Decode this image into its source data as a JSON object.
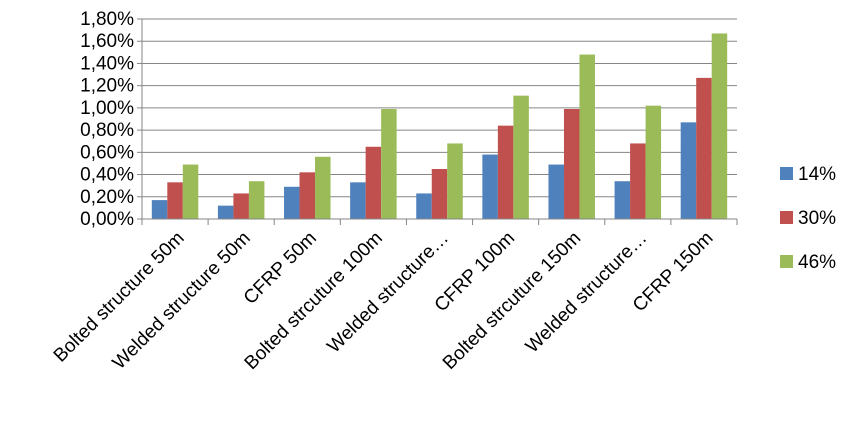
{
  "chart_data": {
    "type": "bar",
    "title": "",
    "xlabel": "",
    "ylabel": "",
    "ylim": [
      0,
      0.018
    ],
    "y_ticks": [
      "0,00%",
      "0,20%",
      "0,40%",
      "0,60%",
      "0,80%",
      "1,00%",
      "1,20%",
      "1,40%",
      "1,60%",
      "1,80%"
    ],
    "grid": true,
    "legend_position": "right",
    "categories": [
      "Bolted structure 50m",
      "Welded structure 50m",
      "CFRP 50m",
      "Bolted strcuture 100m",
      "Welded structure…",
      "CFRP 100m",
      "Bolted strcuture 150m",
      "Welded structure…",
      "CFRP 150m"
    ],
    "series": [
      {
        "name": "14%",
        "color": "#4F81BD",
        "values": [
          0.0017,
          0.0012,
          0.0029,
          0.0033,
          0.0023,
          0.0058,
          0.0049,
          0.0034,
          0.0087
        ]
      },
      {
        "name": "30%",
        "color": "#C0504D",
        "values": [
          0.0033,
          0.0023,
          0.0042,
          0.0065,
          0.0045,
          0.0084,
          0.0099,
          0.0068,
          0.0127
        ]
      },
      {
        "name": "46%",
        "color": "#9BBB59",
        "values": [
          0.0049,
          0.0034,
          0.0056,
          0.0099,
          0.0068,
          0.0111,
          0.0148,
          0.0102,
          0.0167
        ]
      }
    ]
  }
}
